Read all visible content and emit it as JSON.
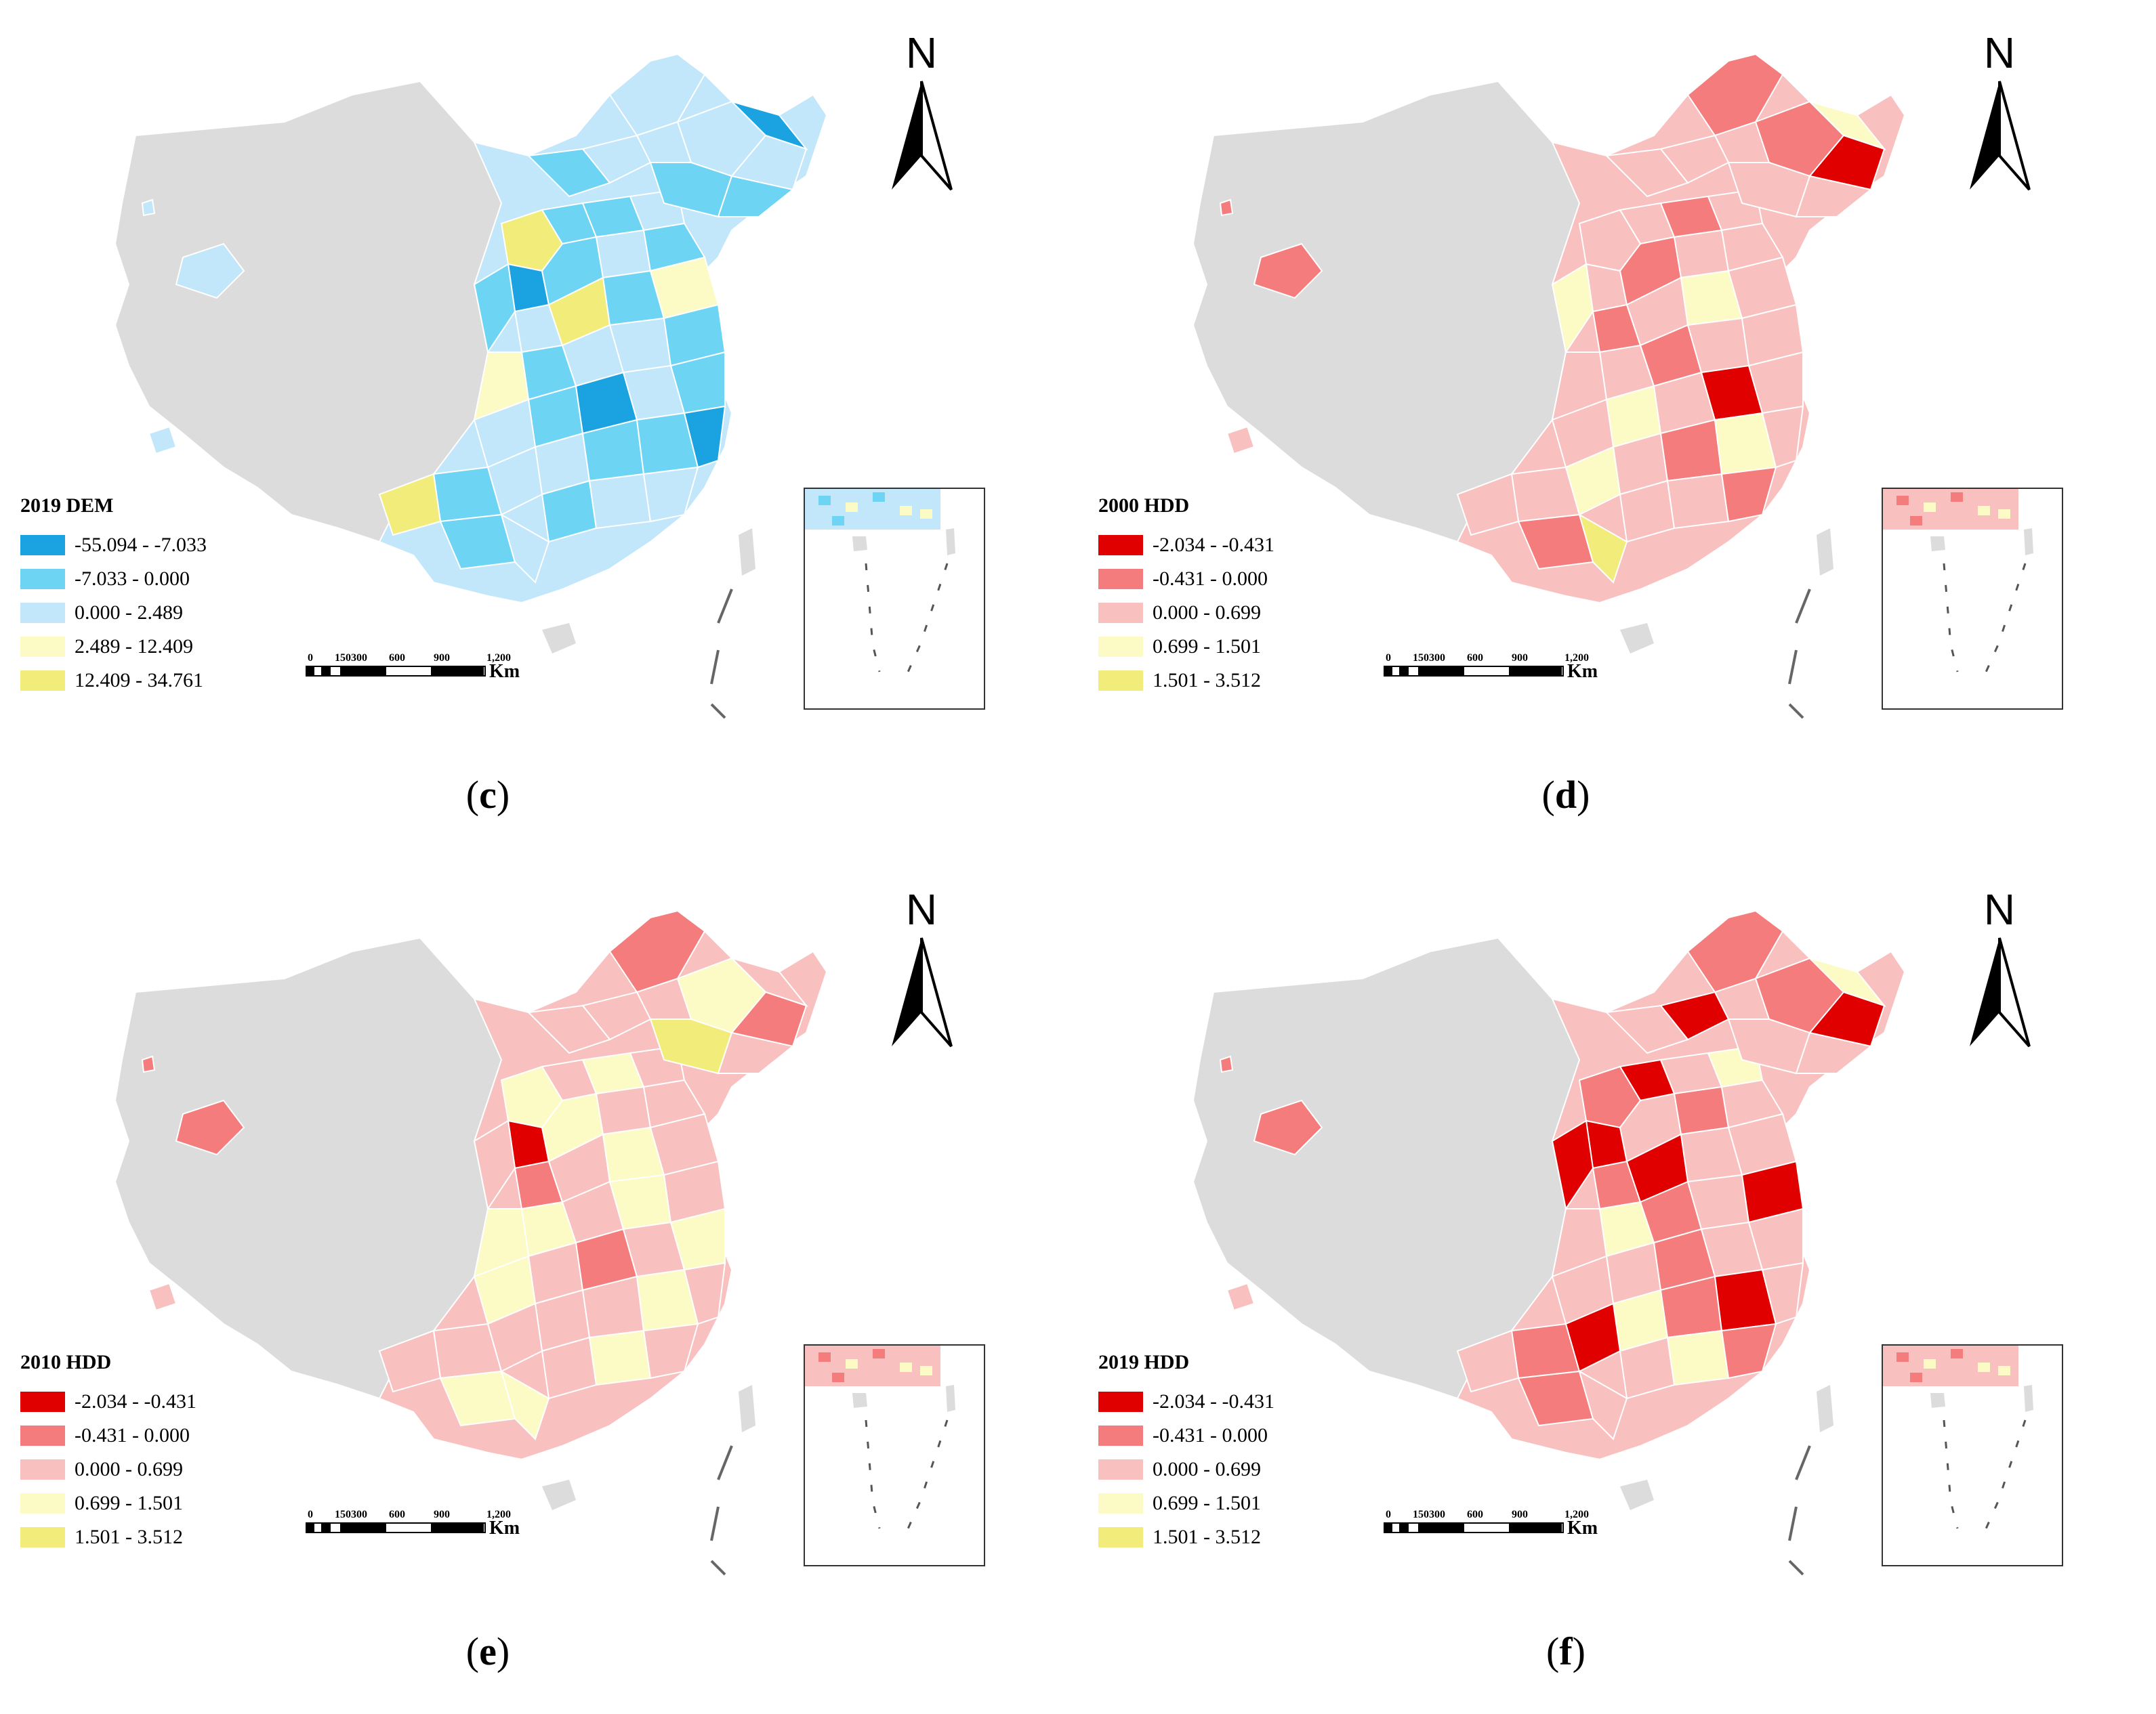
{
  "panels": [
    {
      "id": "c",
      "caption_letter": "c",
      "legend_title": "2019 DEM",
      "legend": [
        {
          "label": "-55.094 - -7.033",
          "color": "#1aa3e0"
        },
        {
          "label": "-7.033 - 0.000",
          "color": "#6dd4f4"
        },
        {
          "label": "0.000 - 2.489",
          "color": "#c2e6fa"
        },
        {
          "label": "2.489 - 12.409",
          "color": "#fcfbc6"
        },
        {
          "label": "12.409 - 34.761",
          "color": "#f2ed7a"
        }
      ]
    },
    {
      "id": "d",
      "caption_letter": "d",
      "legend_title": "2000 HDD",
      "legend": [
        {
          "label": "-2.034 - -0.431",
          "color": "#e00000"
        },
        {
          "label": "-0.431 - 0.000",
          "color": "#f47c7c"
        },
        {
          "label": "0.000 - 0.699",
          "color": "#f9c0c0"
        },
        {
          "label": "0.699 - 1.501",
          "color": "#fcfbc6"
        },
        {
          "label": "1.501 - 3.512",
          "color": "#f2ed7a"
        }
      ]
    },
    {
      "id": "e",
      "caption_letter": "e",
      "legend_title": "2010 HDD",
      "legend": [
        {
          "label": "-2.034 - -0.431",
          "color": "#e00000"
        },
        {
          "label": "-0.431 - 0.000",
          "color": "#f47c7c"
        },
        {
          "label": "0.000 - 0.699",
          "color": "#f9c0c0"
        },
        {
          "label": "0.699 - 1.501",
          "color": "#fcfbc6"
        },
        {
          "label": "1.501 - 3.512",
          "color": "#f2ed7a"
        }
      ]
    },
    {
      "id": "f",
      "caption_letter": "f",
      "legend_title": "2019 HDD",
      "legend": [
        {
          "label": "-2.034 - -0.431",
          "color": "#e00000"
        },
        {
          "label": "-0.431 - 0.000",
          "color": "#f47c7c"
        },
        {
          "label": "0.000 - 0.699",
          "color": "#f9c0c0"
        },
        {
          "label": "0.699 - 1.501",
          "color": "#fcfbc6"
        },
        {
          "label": "1.501 - 3.512",
          "color": "#f2ed7a"
        }
      ]
    }
  ],
  "scale_labels": [
    "0",
    "150300",
    "600",
    "900",
    "1,200"
  ],
  "scale_unit": "Km",
  "north_label": "N",
  "no_data_color": "#dcdcdc"
}
